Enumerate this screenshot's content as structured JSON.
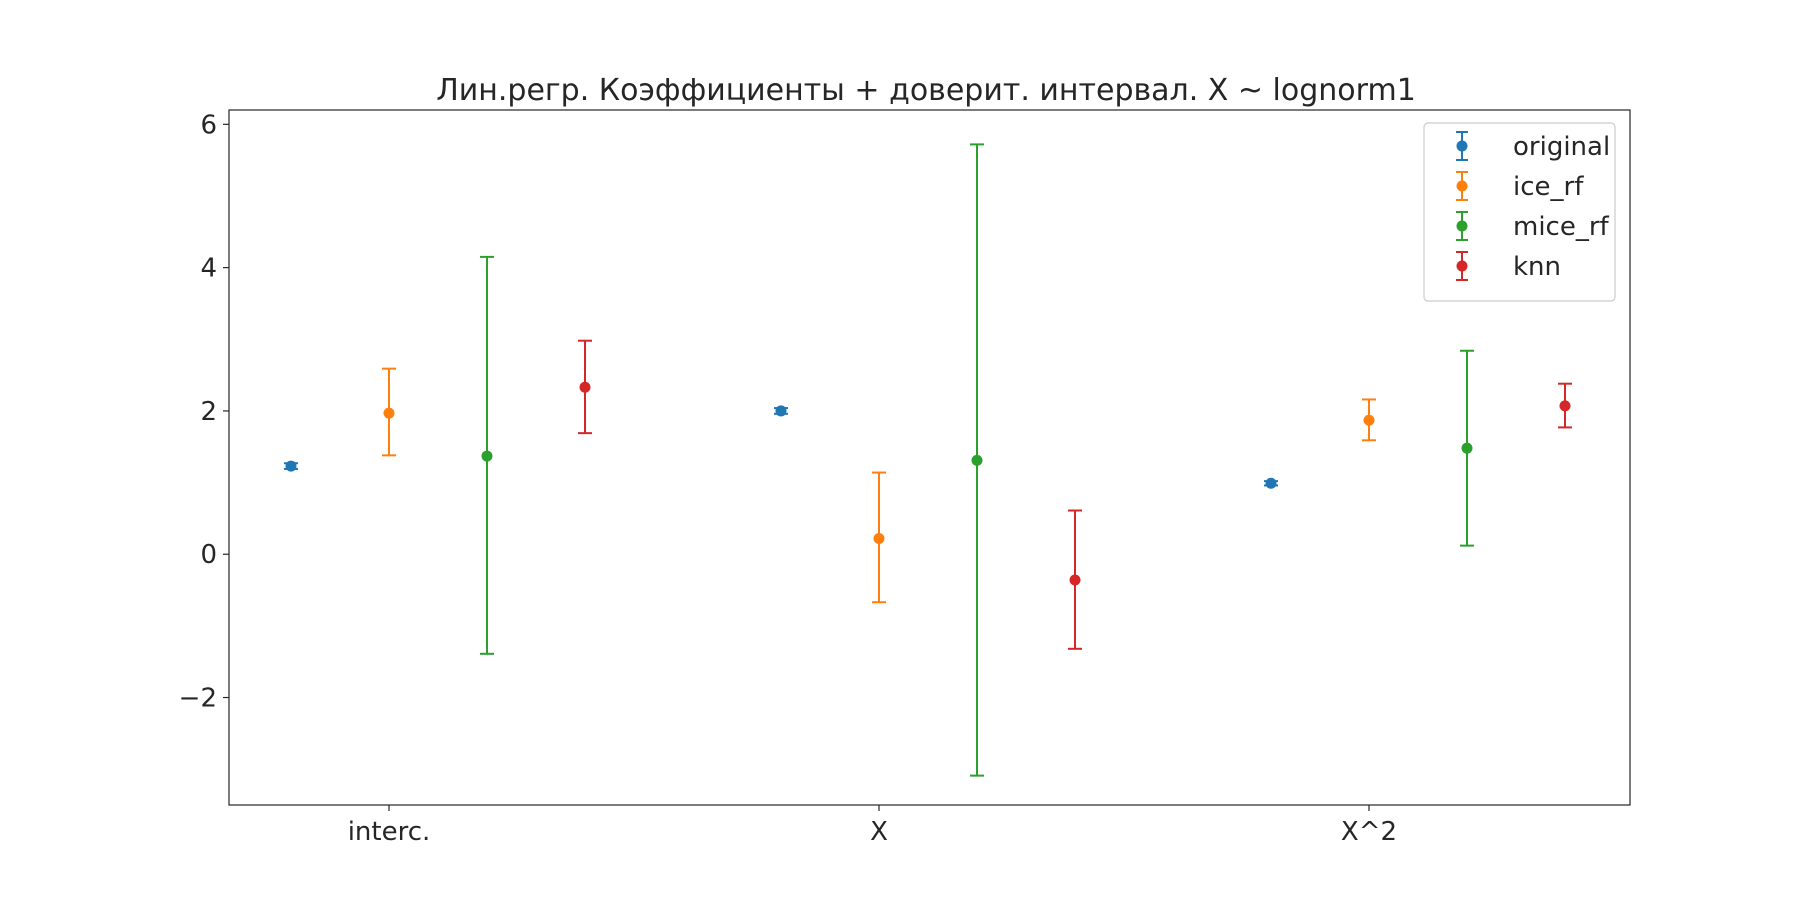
{
  "chart_data": {
    "type": "errorbar",
    "title": "Лин.регр. Коэффициенты + доверит. интервал. X ~ lognorm1",
    "xlabel": "",
    "ylabel": "",
    "categories": [
      "interc.",
      "X",
      "X^2"
    ],
    "ylim": [
      -3.5,
      6.2
    ],
    "yticks": [
      -2,
      0,
      2,
      4,
      6
    ],
    "ytick_labels": [
      "−2",
      "0",
      "2",
      "4",
      "6"
    ],
    "grid": false,
    "legend_position": "top-right",
    "series": [
      {
        "name": "original",
        "color": "#1f77b4",
        "points": [
          {
            "category": "interc.",
            "value": 1.23,
            "lower": 1.19,
            "upper": 1.27
          },
          {
            "category": "X",
            "value": 2.0,
            "lower": 1.96,
            "upper": 2.04
          },
          {
            "category": "X^2",
            "value": 0.99,
            "lower": 0.96,
            "upper": 1.02
          }
        ]
      },
      {
        "name": "ice_rf",
        "color": "#ff7f0e",
        "points": [
          {
            "category": "interc.",
            "value": 1.97,
            "lower": 1.38,
            "upper": 2.59
          },
          {
            "category": "X",
            "value": 0.22,
            "lower": -0.67,
            "upper": 1.14
          },
          {
            "category": "X^2",
            "value": 1.87,
            "lower": 1.59,
            "upper": 2.16
          }
        ]
      },
      {
        "name": "mice_rf",
        "color": "#2ca02c",
        "points": [
          {
            "category": "interc.",
            "value": 1.37,
            "lower": -1.39,
            "upper": 4.15
          },
          {
            "category": "X",
            "value": 1.31,
            "lower": -3.09,
            "upper": 5.72
          },
          {
            "category": "X^2",
            "value": 1.48,
            "lower": 0.12,
            "upper": 2.84
          }
        ]
      },
      {
        "name": "knn",
        "color": "#d62728",
        "points": [
          {
            "category": "interc.",
            "value": 2.33,
            "lower": 1.69,
            "upper": 2.98
          },
          {
            "category": "X",
            "value": -0.36,
            "lower": -1.32,
            "upper": 0.61
          },
          {
            "category": "X^2",
            "value": 2.07,
            "lower": 1.77,
            "upper": 2.38
          }
        ]
      }
    ]
  }
}
